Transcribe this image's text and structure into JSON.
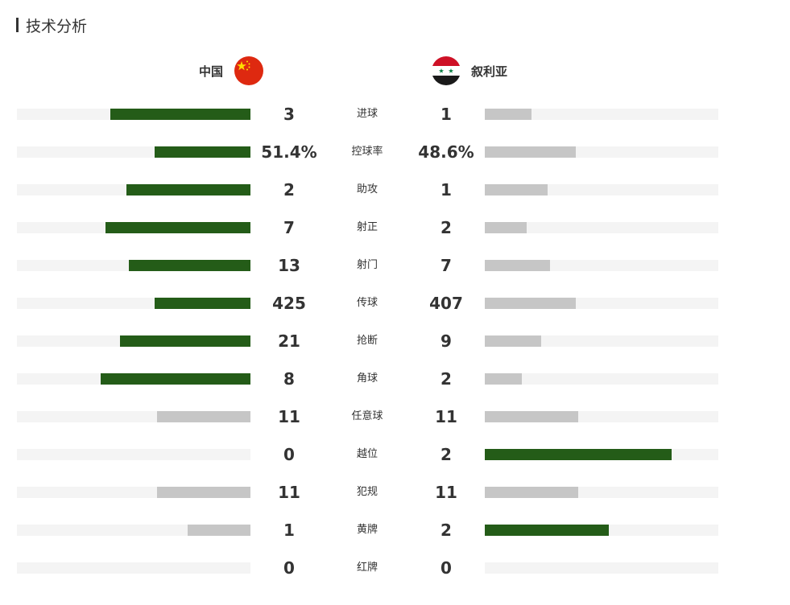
{
  "section": {
    "title": "技术分析"
  },
  "teams": {
    "home": {
      "name": "中国",
      "flag_icon": "china-flag-icon"
    },
    "away": {
      "name": "叙利亚",
      "flag_icon": "syria-flag-icon"
    }
  },
  "colors": {
    "leader": "#245c18",
    "trailer": "#c6c6c6",
    "track": "#f4f4f4"
  },
  "stats": [
    {
      "label": "进球",
      "home": "3",
      "away": "1",
      "home_fill": 0.6,
      "away_fill": 0.2,
      "home_color": "#245c18",
      "away_color": "#c6c6c6"
    },
    {
      "label": "控球率",
      "home": "51.4%",
      "away": "48.6%",
      "home_fill": 0.41,
      "away_fill": 0.39,
      "home_color": "#245c18",
      "away_color": "#c6c6c6"
    },
    {
      "label": "助攻",
      "home": "2",
      "away": "1",
      "home_fill": 0.53,
      "away_fill": 0.27,
      "home_color": "#245c18",
      "away_color": "#c6c6c6"
    },
    {
      "label": "射正",
      "home": "7",
      "away": "2",
      "home_fill": 0.62,
      "away_fill": 0.18,
      "home_color": "#245c18",
      "away_color": "#c6c6c6"
    },
    {
      "label": "射门",
      "home": "13",
      "away": "7",
      "home_fill": 0.52,
      "away_fill": 0.28,
      "home_color": "#245c18",
      "away_color": "#c6c6c6"
    },
    {
      "label": "传球",
      "home": "425",
      "away": "407",
      "home_fill": 0.41,
      "away_fill": 0.39,
      "home_color": "#245c18",
      "away_color": "#c6c6c6"
    },
    {
      "label": "抢断",
      "home": "21",
      "away": "9",
      "home_fill": 0.56,
      "away_fill": 0.24,
      "home_color": "#245c18",
      "away_color": "#c6c6c6"
    },
    {
      "label": "角球",
      "home": "8",
      "away": "2",
      "home_fill": 0.64,
      "away_fill": 0.16,
      "home_color": "#245c18",
      "away_color": "#c6c6c6"
    },
    {
      "label": "任意球",
      "home": "11",
      "away": "11",
      "home_fill": 0.4,
      "away_fill": 0.4,
      "home_color": "#c6c6c6",
      "away_color": "#c6c6c6"
    },
    {
      "label": "越位",
      "home": "0",
      "away": "2",
      "home_fill": 0,
      "away_fill": 0.8,
      "home_color": "#c6c6c6",
      "away_color": "#245c18"
    },
    {
      "label": "犯规",
      "home": "11",
      "away": "11",
      "home_fill": 0.4,
      "away_fill": 0.4,
      "home_color": "#c6c6c6",
      "away_color": "#c6c6c6"
    },
    {
      "label": "黄牌",
      "home": "1",
      "away": "2",
      "home_fill": 0.27,
      "away_fill": 0.53,
      "home_color": "#c6c6c6",
      "away_color": "#245c18"
    },
    {
      "label": "红牌",
      "home": "0",
      "away": "0",
      "home_fill": 0,
      "away_fill": 0,
      "home_color": "#c6c6c6",
      "away_color": "#c6c6c6"
    }
  ]
}
